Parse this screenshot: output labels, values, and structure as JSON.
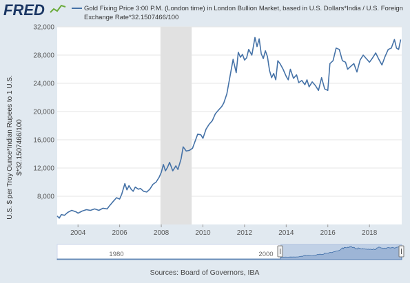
{
  "brand": {
    "logo_text": "FRED"
  },
  "legend": {
    "line1": "Gold Fixing Price 3:00 P.M. (London time) in London Bullion Market, based in U.S. Dollars*India / U.S. Foreign",
    "line2": "Exchange Rate*32.1507466/100"
  },
  "source": "Sources: Board of Governors, IBA",
  "navigator": {
    "labels": [
      "1980",
      "2000"
    ]
  },
  "colors": {
    "line": "#4572a7",
    "recession": "#e1e1e1",
    "background": "#e1e9f0",
    "plot_bg": "#ffffff",
    "grid": "#e6e6e6"
  },
  "chart_data": {
    "type": "line",
    "title": "",
    "xlabel": "",
    "ylabel_lines": [
      "U.S. $ per Troy Ounce*Indian Rupees to 1 U.S.",
      "$*32.1507466/100"
    ],
    "x_ticks": [
      "2004",
      "2006",
      "2008",
      "2010",
      "2012",
      "2014",
      "2016",
      "2018"
    ],
    "y_ticks": [
      "8,000",
      "12,000",
      "16,000",
      "20,000",
      "24,000",
      "28,000",
      "32,000"
    ],
    "xlim": [
      2003.0,
      2019.55
    ],
    "ylim": [
      4000,
      32000
    ],
    "grid": true,
    "legend_position": "top",
    "recession_shading": [
      [
        2007.96,
        2009.46
      ]
    ],
    "series": [
      {
        "name": "Gold Fixing Price 3:00 P.M. (London time) in London Bullion Market, based in U.S. Dollars*India / U.S. Foreign Exchange Rate*32.1507466/100",
        "x": [
          2003.0,
          2003.1,
          2003.2,
          2003.35,
          2003.5,
          2003.7,
          2003.9,
          2004.0,
          2004.2,
          2004.4,
          2004.6,
          2004.8,
          2005.0,
          2005.2,
          2005.4,
          2005.5,
          2005.7,
          2005.85,
          2006.0,
          2006.1,
          2006.25,
          2006.35,
          2006.45,
          2006.55,
          2006.65,
          2006.75,
          2006.9,
          2007.0,
          2007.15,
          2007.3,
          2007.45,
          2007.6,
          2007.75,
          2007.9,
          2008.0,
          2008.1,
          2008.2,
          2008.3,
          2008.4,
          2008.55,
          2008.7,
          2008.8,
          2008.95,
          2009.05,
          2009.2,
          2009.35,
          2009.5,
          2009.6,
          2009.75,
          2009.9,
          2010.0,
          2010.15,
          2010.3,
          2010.45,
          2010.6,
          2010.75,
          2010.9,
          2011.0,
          2011.15,
          2011.3,
          2011.45,
          2011.6,
          2011.7,
          2011.8,
          2011.9,
          2012.0,
          2012.1,
          2012.2,
          2012.35,
          2012.5,
          2012.6,
          2012.7,
          2012.8,
          2012.9,
          2013.0,
          2013.1,
          2013.2,
          2013.3,
          2013.4,
          2013.5,
          2013.6,
          2013.7,
          2013.85,
          2014.0,
          2014.1,
          2014.2,
          2014.35,
          2014.5,
          2014.6,
          2014.75,
          2014.9,
          2015.0,
          2015.1,
          2015.25,
          2015.4,
          2015.55,
          2015.7,
          2015.85,
          2016.0,
          2016.1,
          2016.25,
          2016.4,
          2016.55,
          2016.7,
          2016.85,
          2016.95,
          2017.1,
          2017.25,
          2017.4,
          2017.55,
          2017.7,
          2017.85,
          2018.0,
          2018.15,
          2018.3,
          2018.45,
          2018.6,
          2018.75,
          2018.9,
          2019.05,
          2019.2,
          2019.3,
          2019.4,
          2019.5
        ],
        "y": [
          5200,
          4900,
          5400,
          5300,
          5700,
          6000,
          5800,
          5600,
          5900,
          6100,
          6000,
          6200,
          6000,
          6300,
          6200,
          6600,
          7300,
          7800,
          7600,
          8300,
          9800,
          8900,
          9500,
          9000,
          8700,
          9300,
          9000,
          9100,
          8700,
          8600,
          9000,
          9700,
          10000,
          10700,
          11400,
          12500,
          11600,
          12100,
          12800,
          11600,
          12300,
          11800,
          13300,
          15000,
          14400,
          14500,
          14800,
          15600,
          16800,
          16700,
          16200,
          17500,
          18200,
          18700,
          19700,
          20200,
          20700,
          21200,
          22500,
          25000,
          27400,
          25500,
          28400,
          27700,
          28100,
          27300,
          27600,
          28800,
          28000,
          30500,
          29200,
          30300,
          28200,
          27500,
          28600,
          27800,
          25800,
          24800,
          25400,
          24500,
          27200,
          26800,
          26000,
          25000,
          24500,
          26000,
          24700,
          25200,
          24100,
          24400,
          23800,
          24500,
          23500,
          24200,
          23700,
          23000,
          24800,
          23200,
          23000,
          26800,
          27200,
          29000,
          28800,
          27200,
          27000,
          26000,
          26400,
          26800,
          25600,
          27300,
          28000,
          27500,
          27000,
          27600,
          28300,
          27400,
          26600,
          27800,
          28800,
          29000,
          30200,
          29000,
          28800,
          30200
        ]
      }
    ]
  }
}
